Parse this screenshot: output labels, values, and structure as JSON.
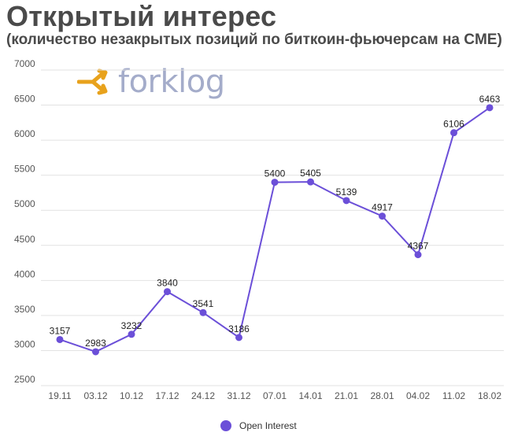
{
  "header": {
    "title": "Открытый интерес",
    "subtitle": "(количество незакрытых позиций по биткоин-фьючерсам на CME)"
  },
  "logo": {
    "text": "forklog",
    "icon": "forklog-arrow-icon",
    "icon_color": "#e8a21c"
  },
  "colors": {
    "series": "#6b4fd8",
    "grid": "#e2e2e2"
  },
  "chart_data": {
    "type": "line",
    "title": "Открытый интерес",
    "subtitle": "(количество незакрытых позиций по биткоин-фьючерсам на CME)",
    "xlabel": "",
    "ylabel": "",
    "categories": [
      "19.11",
      "03.12",
      "10.12",
      "17.12",
      "24.12",
      "31.12",
      "07.01",
      "14.01",
      "21.01",
      "28.01",
      "04.02",
      "11.02",
      "18.02"
    ],
    "series": [
      {
        "name": "Open Interest",
        "values": [
          3157,
          2983,
          3232,
          3840,
          3541,
          3186,
          5400,
          5405,
          5139,
          4917,
          4367,
          6106,
          6463
        ]
      }
    ],
    "ylim": [
      2500,
      7000
    ],
    "yticks": [
      2500,
      3000,
      3500,
      4000,
      4500,
      5000,
      5500,
      6000,
      6500,
      7000
    ],
    "grid": true,
    "data_labels": true,
    "legend": {
      "position": "bottom",
      "entries": [
        "Open Interest"
      ]
    }
  }
}
